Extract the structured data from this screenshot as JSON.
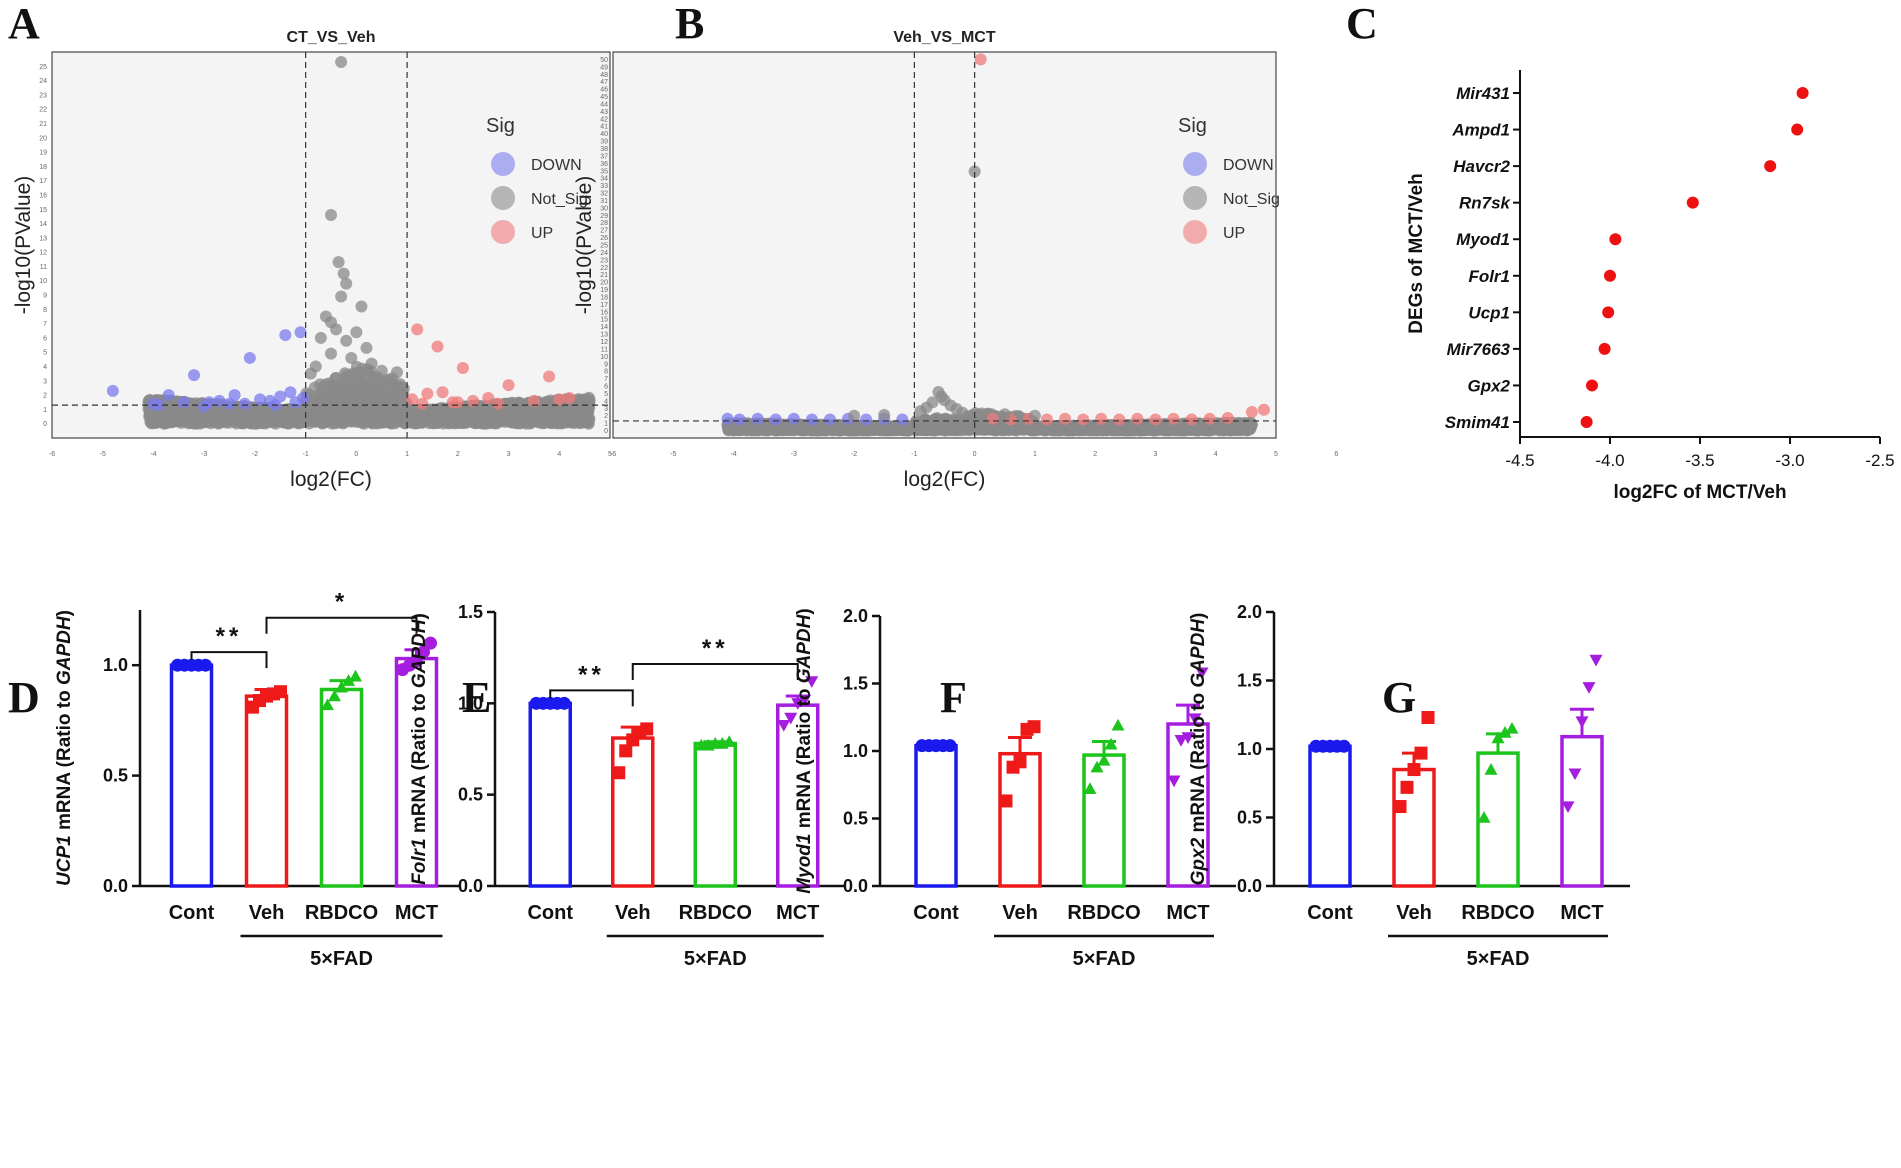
{
  "figure": {
    "panel_letters": [
      "A",
      "B",
      "C",
      "D",
      "E",
      "F",
      "G"
    ]
  },
  "colors": {
    "down": "#7b7bef",
    "not_sig": "#8a8a8a",
    "up": "#f07a7a",
    "dot_c": "#ee1111",
    "cont": "#1a1aee",
    "veh": "#ee1a1a",
    "rbdco": "#1cc41c",
    "mct": "#a51ee0"
  },
  "chart_data": [
    {
      "id": "A",
      "type": "scatter",
      "title": "CT_VS_Veh",
      "xlabel": "log2(FC)",
      "ylabel": "-log10(PValue)",
      "xlim": [
        -6,
        5
      ],
      "ylim": [
        -1,
        26
      ],
      "xticks": [
        -6,
        -5,
        -4,
        -3,
        -2,
        -1,
        0,
        1,
        2,
        3,
        4,
        5
      ],
      "yticks": [
        0,
        1,
        2,
        3,
        4,
        5,
        6,
        7,
        8,
        9,
        10,
        11,
        12,
        13,
        14,
        15,
        16,
        17,
        18,
        19,
        20,
        21,
        22,
        23,
        24,
        25
      ],
      "vlines": [
        -1,
        1
      ],
      "hline": 1.3,
      "legend": {
        "title": "Sig",
        "items": [
          "DOWN",
          "Not_Sig",
          "UP"
        ],
        "position": "top-right"
      },
      "series": [
        {
          "name": "DOWN",
          "points": [
            [
              -4.8,
              2.3
            ],
            [
              -4.0,
              1.4
            ],
            [
              -3.7,
              2.0
            ],
            [
              -3.4,
              1.5
            ],
            [
              -3.2,
              3.4
            ],
            [
              -3.0,
              1.2
            ],
            [
              -2.7,
              1.6
            ],
            [
              -2.5,
              1.4
            ],
            [
              -2.4,
              2.0
            ],
            [
              -2.1,
              4.6
            ],
            [
              -1.9,
              1.7
            ],
            [
              -1.6,
              1.3
            ],
            [
              -1.5,
              1.9
            ],
            [
              -1.4,
              6.2
            ],
            [
              -1.3,
              2.2
            ],
            [
              -1.2,
              1.5
            ],
            [
              -1.1,
              6.4
            ],
            [
              -1.05,
              1.8
            ],
            [
              -3.9,
              1.3
            ],
            [
              -2.9,
              1.5
            ],
            [
              -2.2,
              1.4
            ],
            [
              -1.7,
              1.6
            ]
          ]
        },
        {
          "name": "UP",
          "points": [
            [
              1.1,
              1.7
            ],
            [
              1.2,
              6.6
            ],
            [
              1.4,
              2.1
            ],
            [
              1.6,
              5.4
            ],
            [
              1.7,
              2.2
            ],
            [
              1.9,
              1.5
            ],
            [
              2.1,
              3.9
            ],
            [
              2.3,
              1.6
            ],
            [
              2.6,
              1.8
            ],
            [
              3.0,
              2.7
            ],
            [
              3.5,
              1.6
            ],
            [
              3.8,
              3.3
            ],
            [
              4.0,
              1.7
            ],
            [
              4.2,
              1.8
            ],
            [
              1.3,
              1.4
            ],
            [
              2.0,
              1.5
            ],
            [
              2.8,
              1.4
            ]
          ]
        },
        {
          "name": "Not_Sig",
          "points": [
            [
              -0.3,
              25.3
            ],
            [
              -0.5,
              14.6
            ],
            [
              -0.35,
              11.3
            ],
            [
              -0.25,
              10.5
            ],
            [
              -0.2,
              9.8
            ],
            [
              -0.3,
              8.9
            ],
            [
              0.1,
              8.2
            ],
            [
              -0.6,
              7.5
            ],
            [
              -0.5,
              7.1
            ],
            [
              -0.4,
              6.6
            ],
            [
              0.0,
              6.4
            ],
            [
              -0.7,
              6.0
            ],
            [
              -0.2,
              5.8
            ],
            [
              0.2,
              5.3
            ],
            [
              -0.5,
              4.9
            ],
            [
              -0.1,
              4.6
            ],
            [
              0.3,
              4.2
            ],
            [
              -0.8,
              4.0
            ],
            [
              0.5,
              3.7
            ],
            [
              -0.9,
              3.5
            ],
            [
              0.8,
              3.6
            ],
            [
              0.4,
              3.1
            ],
            [
              -0.4,
              3.2
            ],
            [
              0.6,
              2.8
            ],
            [
              0.9,
              2.4
            ]
          ]
        }
      ]
    },
    {
      "id": "B",
      "type": "scatter",
      "title": "Veh_VS_MCT",
      "xlabel": "log2(FC)",
      "ylabel": "-log10(PValue)",
      "xlim": [
        -6,
        5
      ],
      "ylim": [
        -1,
        51
      ],
      "xticks": [
        -6,
        -5,
        -4,
        -3,
        -2,
        -1,
        0,
        1,
        2,
        3,
        4,
        5,
        6
      ],
      "yticks": [
        0,
        1,
        2,
        3,
        4,
        5,
        6,
        7,
        8,
        9,
        10,
        11,
        12,
        13,
        14,
        15,
        16,
        17,
        18,
        19,
        20,
        21,
        22,
        23,
        24,
        25,
        26,
        27,
        28,
        29,
        30,
        31,
        32,
        33,
        34,
        35,
        36,
        37,
        38,
        39,
        40,
        41,
        42,
        43,
        44,
        45,
        46,
        47,
        48,
        49,
        50
      ],
      "vlines": [
        -1,
        0
      ],
      "hline": 1.3,
      "legend": {
        "title": "Sig",
        "items": [
          "DOWN",
          "Not_Sig",
          "UP"
        ],
        "position": "top-right"
      },
      "series": [
        {
          "name": "DOWN",
          "points": [
            [
              -4.1,
              1.6
            ],
            [
              -3.9,
              1.5
            ],
            [
              -3.6,
              1.6
            ],
            [
              -3.3,
              1.5
            ],
            [
              -3.0,
              1.6
            ],
            [
              -2.7,
              1.5
            ],
            [
              -2.4,
              1.5
            ],
            [
              -2.1,
              1.6
            ],
            [
              -1.8,
              1.5
            ],
            [
              -1.5,
              1.6
            ],
            [
              -1.2,
              1.5
            ]
          ]
        },
        {
          "name": "UP",
          "points": [
            [
              0.1,
              50.0
            ],
            [
              0.3,
              1.6
            ],
            [
              0.6,
              1.5
            ],
            [
              0.9,
              1.6
            ],
            [
              1.2,
              1.5
            ],
            [
              1.5,
              1.6
            ],
            [
              1.8,
              1.5
            ],
            [
              2.1,
              1.6
            ],
            [
              2.4,
              1.5
            ],
            [
              2.7,
              1.6
            ],
            [
              3.0,
              1.5
            ],
            [
              3.3,
              1.6
            ],
            [
              3.6,
              1.5
            ],
            [
              3.9,
              1.6
            ],
            [
              4.2,
              1.7
            ],
            [
              4.6,
              2.5
            ],
            [
              4.8,
              2.8
            ]
          ]
        },
        {
          "name": "Not_Sig",
          "points": [
            [
              0.0,
              34.9
            ],
            [
              -0.6,
              5.2
            ],
            [
              -0.55,
              4.6
            ],
            [
              -0.5,
              4.1
            ],
            [
              -0.7,
              3.8
            ],
            [
              -0.4,
              3.4
            ],
            [
              -0.8,
              3.1
            ],
            [
              -0.3,
              2.9
            ],
            [
              -0.9,
              2.6
            ],
            [
              -0.2,
              2.4
            ],
            [
              -1.5,
              2.1
            ],
            [
              0.5,
              2.2
            ],
            [
              -2.0,
              2.0
            ],
            [
              1.0,
              2.0
            ]
          ]
        }
      ]
    },
    {
      "id": "C",
      "type": "scatter",
      "orientation": "horizontal",
      "xlabel": "log2FC of MCT/Veh",
      "ylabel": "DEGs of MCT/Veh",
      "xlim": [
        -4.5,
        -2.5
      ],
      "xticks": [
        "-4.5",
        "-4.0",
        "-3.5",
        "-3.0",
        "-2.5"
      ],
      "categories": [
        "Mir431",
        "Ampd1",
        "Havcr2",
        "Rn7sk",
        "Myod1",
        "Folr1",
        "Ucp1",
        "Mir7663",
        "Gpx2",
        "Smim41"
      ],
      "values": [
        -2.93,
        -2.96,
        -3.11,
        -3.54,
        -3.97,
        -4.0,
        -4.01,
        -4.03,
        -4.1,
        -4.13
      ]
    },
    {
      "id": "D",
      "type": "bar",
      "ylabel_gene": "UCP1",
      "ylabel_rest": " mRNA (Ratio to ",
      "ylabel_ref": "GAPDH",
      "ylabel_end": ")",
      "ylim": [
        0,
        1.25
      ],
      "yticks": [
        "0.0",
        "0.5",
        "1.0"
      ],
      "categories": [
        "Cont",
        "Veh",
        "RBDCO",
        "MCT"
      ],
      "group_label": "5×FAD",
      "values": [
        1.0,
        0.86,
        0.89,
        1.03
      ],
      "sem": [
        0.005,
        0.03,
        0.04,
        0.04
      ],
      "points": [
        [
          1.0,
          1.0,
          1.0,
          1.0,
          1.0
        ],
        [
          0.81,
          0.84,
          0.86,
          0.87,
          0.88
        ],
        [
          0.82,
          0.86,
          0.9,
          0.93,
          0.95
        ],
        [
          0.98,
          1.0,
          1.02,
          1.06,
          1.1
        ]
      ],
      "markers": [
        "circle",
        "square",
        "triangle",
        "circle"
      ],
      "significance": [
        {
          "from": 0,
          "to": 1,
          "label": "**"
        },
        {
          "from": 1,
          "to": 3,
          "label": "*"
        }
      ]
    },
    {
      "id": "E",
      "type": "bar",
      "ylabel_gene": "Folr1",
      "ylabel_rest": " mRNA (Ratio to ",
      "ylabel_ref": "GAPDH",
      "ylabel_end": ")",
      "ylim": [
        0,
        1.5
      ],
      "yticks": [
        "0.0",
        "0.5",
        "1.0",
        "1.5"
      ],
      "categories": [
        "Cont",
        "Veh",
        "RBDCO",
        "MCT"
      ],
      "group_label": "5×FAD",
      "values": [
        1.0,
        0.81,
        0.78,
        0.99
      ],
      "sem": [
        0.005,
        0.06,
        0.01,
        0.05
      ],
      "points": [
        [
          1.0,
          1.0,
          1.0,
          1.0,
          1.0
        ],
        [
          0.62,
          0.74,
          0.8,
          0.84,
          0.86
        ],
        [
          0.77,
          0.77,
          0.78,
          0.78,
          0.79
        ],
        [
          0.88,
          0.92,
          1.0,
          1.02,
          1.12
        ]
      ],
      "markers": [
        "circle",
        "square",
        "triangle",
        "down-triangle"
      ],
      "significance": [
        {
          "from": 0,
          "to": 1,
          "label": "**"
        },
        {
          "from": 1,
          "to": 3,
          "label": "**"
        }
      ]
    },
    {
      "id": "F",
      "type": "bar",
      "ylabel_gene": "Myod1",
      "ylabel_rest": " mRNA (Ratio to ",
      "ylabel_ref": "GAPDH",
      "ylabel_end": ")",
      "ylim": [
        0,
        2.0
      ],
      "yticks": [
        "0.0",
        "0.5",
        "1.0",
        "1.5",
        "2.0"
      ],
      "categories": [
        "Cont",
        "Veh",
        "RBDCO",
        "MCT"
      ],
      "group_label": "5×FAD",
      "values": [
        1.04,
        0.98,
        0.97,
        1.2
      ],
      "sem": [
        0.01,
        0.12,
        0.1,
        0.14
      ],
      "points": [
        [
          1.04,
          1.04,
          1.04,
          1.04,
          1.04
        ],
        [
          0.63,
          0.88,
          0.92,
          1.16,
          1.18
        ],
        [
          0.72,
          0.88,
          0.93,
          1.05,
          1.19
        ],
        [
          0.78,
          1.08,
          1.1,
          1.24,
          1.58
        ]
      ],
      "markers": [
        "circle",
        "square",
        "triangle",
        "down-triangle"
      ],
      "significance": []
    },
    {
      "id": "G",
      "type": "bar",
      "ylabel_gene": "Gpx2",
      "ylabel_rest": " mRNA (Ratio to ",
      "ylabel_ref": "GAPDH",
      "ylabel_end": ")",
      "ylim": [
        0,
        2.0
      ],
      "yticks": [
        "0.0",
        "0.5",
        "1.0",
        "1.5",
        "2.0"
      ],
      "categories": [
        "Cont",
        "Veh",
        "RBDCO",
        "MCT"
      ],
      "group_label": "5×FAD",
      "values": [
        1.02,
        0.85,
        0.97,
        1.09
      ],
      "sem": [
        0.005,
        0.12,
        0.14,
        0.2
      ],
      "points": [
        [
          1.02,
          1.02,
          1.02,
          1.02,
          1.02
        ],
        [
          0.58,
          0.72,
          0.85,
          0.97,
          1.23
        ],
        [
          0.5,
          0.85,
          1.08,
          1.12,
          1.15
        ],
        [
          0.58,
          0.82,
          1.2,
          1.45,
          1.65
        ]
      ],
      "markers": [
        "circle",
        "square",
        "triangle",
        "down-triangle"
      ],
      "significance": []
    }
  ]
}
